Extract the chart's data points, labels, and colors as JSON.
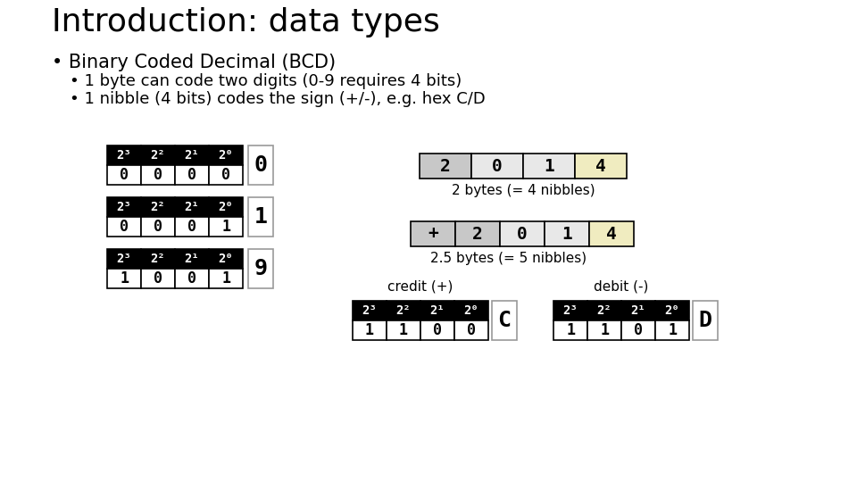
{
  "title": "Introduction: data types",
  "title_fontsize": 26,
  "bullet1": "Binary Coded Decimal (BCD)",
  "bullet1_fontsize": 15,
  "bullet2a": "1 byte can code two digits (0-9 requires 4 bits)",
  "bullet2b": "1 nibble (4 bits) codes the sign (+/-), e.g. hex C/D",
  "bullet2_fontsize": 13,
  "bg_color": "#ffffff",
  "black": "#000000",
  "white": "#ffffff",
  "cell_fontsize": 12,
  "header_fontsize": 10,
  "digit_fontsize": 18,
  "label_fontsize": 11
}
